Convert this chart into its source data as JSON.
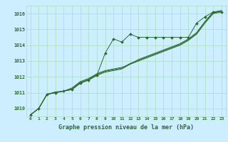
{
  "x": [
    0,
    1,
    2,
    3,
    4,
    5,
    6,
    7,
    8,
    9,
    10,
    11,
    12,
    13,
    14,
    15,
    16,
    17,
    18,
    19,
    20,
    21,
    22,
    23
  ],
  "line1": [
    1009.6,
    1010.0,
    1010.9,
    1011.0,
    1011.1,
    1011.2,
    1011.6,
    1011.8,
    1012.1,
    1013.5,
    1014.4,
    1014.2,
    1014.7,
    1014.5,
    1014.5,
    1014.5,
    1014.5,
    1014.5,
    1014.5,
    1014.5,
    1015.4,
    1015.8,
    1016.1,
    1016.1
  ],
  "line2": [
    1009.6,
    1010.0,
    1010.9,
    1011.0,
    1011.1,
    1011.2,
    1011.6,
    1011.8,
    1012.1,
    1012.3,
    1012.4,
    1012.5,
    1012.8,
    1013.0,
    1013.2,
    1013.4,
    1013.6,
    1013.8,
    1014.0,
    1014.3,
    1014.7,
    1015.4,
    1016.0,
    1016.1
  ],
  "line3": [
    1009.6,
    1010.0,
    1010.9,
    1011.0,
    1011.1,
    1011.3,
    1011.7,
    1011.9,
    1012.2,
    1012.4,
    1012.5,
    1012.6,
    1012.8,
    1013.1,
    1013.3,
    1013.5,
    1013.7,
    1013.9,
    1014.1,
    1014.4,
    1014.8,
    1015.5,
    1016.1,
    1016.2
  ],
  "line4": [
    1009.6,
    1010.0,
    1010.9,
    1011.05,
    1011.1,
    1011.25,
    1011.65,
    1011.85,
    1012.15,
    1012.35,
    1012.45,
    1012.55,
    1012.85,
    1013.05,
    1013.25,
    1013.45,
    1013.65,
    1013.85,
    1014.05,
    1014.35,
    1014.75,
    1015.45,
    1016.05,
    1016.15
  ],
  "bg_color": "#cceeff",
  "line_color": "#2d6a2d",
  "grid_color": "#aaddbb",
  "label_color": "#2d6a2d",
  "xlabel": "Graphe pression niveau de la mer (hPa)",
  "ylim": [
    1009.5,
    1016.5
  ],
  "yticks": [
    1010,
    1011,
    1012,
    1013,
    1014,
    1015,
    1016
  ],
  "xticks": [
    0,
    1,
    2,
    3,
    4,
    5,
    6,
    7,
    8,
    9,
    10,
    11,
    12,
    13,
    14,
    15,
    16,
    17,
    18,
    19,
    20,
    21,
    22,
    23
  ],
  "marker": "D",
  "markersize": 2.0,
  "linewidth": 0.7
}
